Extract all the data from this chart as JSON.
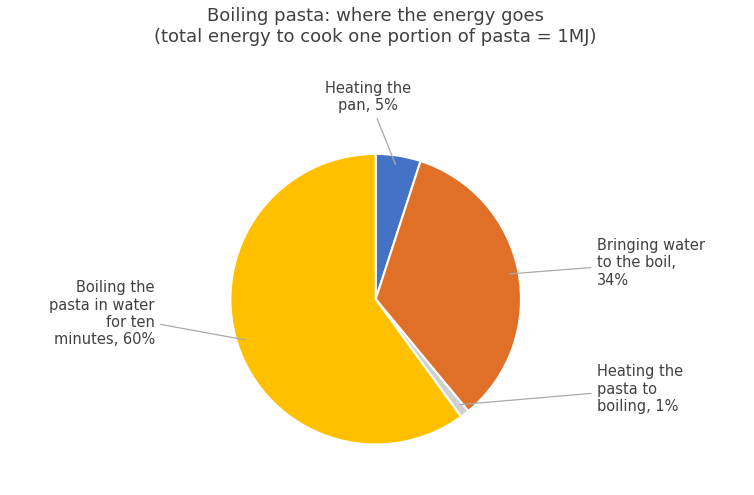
{
  "title_line1": "Boiling pasta: where the energy goes",
  "title_line2": "(total energy to cook one portion of pasta = 1MJ)",
  "slices": [
    {
      "label": "Heating the\npan, 5%",
      "value": 5,
      "color": "#4472C4"
    },
    {
      "label": "Bringing water\nto the boil,\n34%",
      "value": 34,
      "color": "#E07028"
    },
    {
      "label": "Heating the\npasta to\nboiling, 1%",
      "value": 1,
      "color": "#D0D0D0"
    },
    {
      "label": "Boiling the\npasta in water\nfor ten\nminutes, 60%",
      "value": 60,
      "color": "#FFC000"
    }
  ],
  "background_color": "#ffffff",
  "startangle": 90,
  "title_fontsize": 13,
  "label_fontsize": 10.5,
  "label_color": "#404040"
}
